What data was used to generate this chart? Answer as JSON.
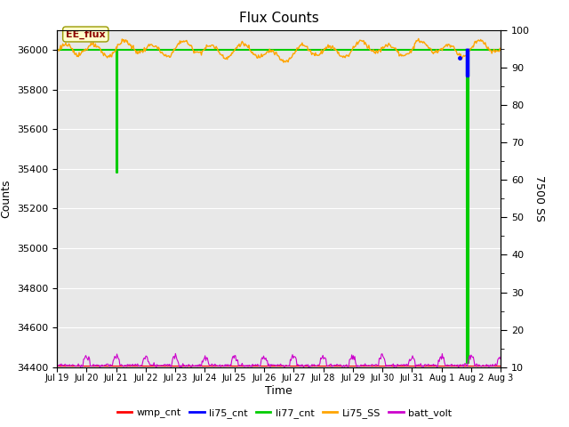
{
  "title": "Flux Counts",
  "xlabel": "Time",
  "ylabel_left": "Counts",
  "ylabel_right": "7500 SS",
  "ylim_left": [
    34400,
    36100
  ],
  "ylim_right": [
    10,
    100
  ],
  "tick_labels": [
    "Jul 19",
    "Jul 20",
    "Jul 21",
    "Jul 22",
    "Jul 23",
    "Jul 24",
    "Jul 25",
    "Jul 26",
    "Jul 27",
    "Jul 28",
    "Jul 29",
    "Jul 30",
    "Jul 31",
    "Aug 1",
    "Aug 2",
    "Aug 3"
  ],
  "colors": {
    "wmp_cnt": "#ff0000",
    "li75_cnt": "#0000ff",
    "li77_cnt": "#00cc00",
    "Li75_SS": "#ffa500",
    "batt_volt": "#cc00cc"
  },
  "bg_color": "#e8e8e8",
  "annotation_text": "EE_flux",
  "grid_color": "#ffffff"
}
